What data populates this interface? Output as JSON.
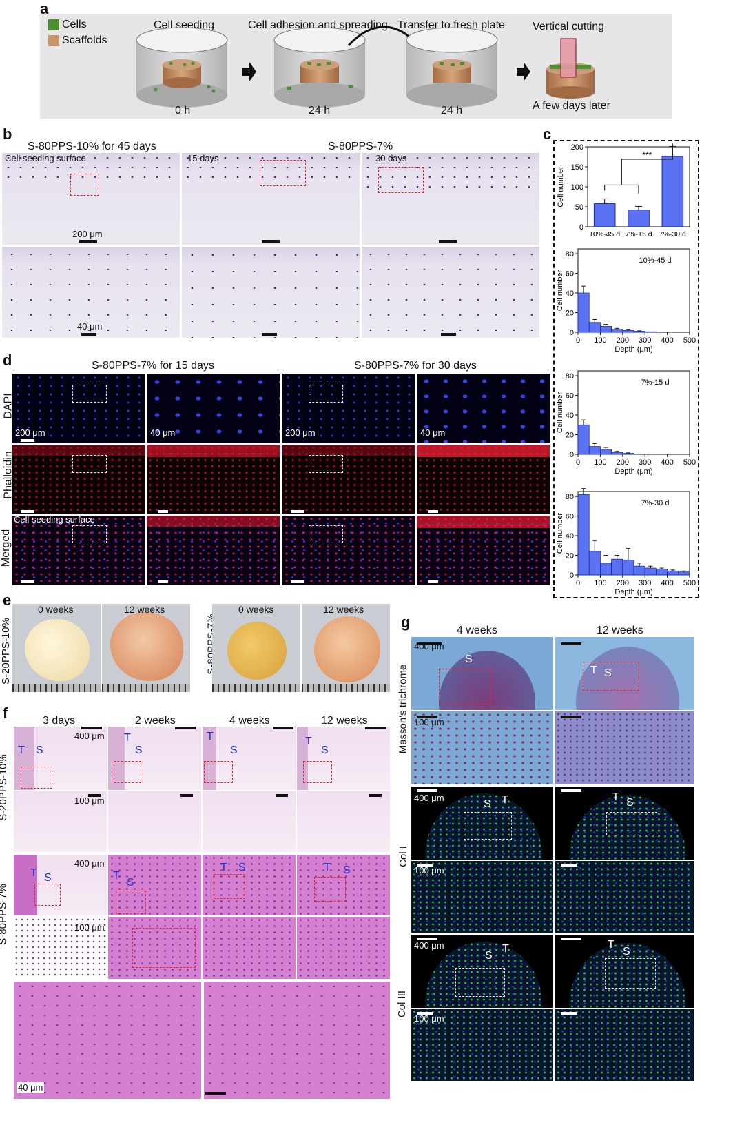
{
  "panel_letters": {
    "a": "a",
    "b": "b",
    "c": "c",
    "d": "d",
    "e": "e",
    "f": "f",
    "g": "g"
  },
  "panel_a": {
    "legend_cells": "Cells",
    "legend_scaffolds": "Scaffolds",
    "cells_color": "#4e8f33",
    "scaffold_color": "#c9956b",
    "step1_title": "Cell seeding",
    "step2_title": "Cell adhesion and spreading",
    "step3_title": "Transfer to fresh plate",
    "step4_title": "Vertical cutting",
    "time1": "0 h",
    "time2": "24 h",
    "time3": "24 h",
    "time4": "A few days later"
  },
  "panel_b": {
    "title_left": "S-80PPS-10% for 45 days",
    "title_right": "S-80PPS-7%",
    "label_15": "15 days",
    "label_30": "30 days",
    "surface_label": "Cell seeding surface",
    "scale_200": "200 μm",
    "scale_40": "40 μm"
  },
  "panel_d": {
    "title_left": "S-80PPS-7% for 15 days",
    "title_right": "S-80PPS-7% for 30 days",
    "row_dapi": "DAPI",
    "row_phalloidin": "Phalloidin",
    "row_merged": "Merged",
    "surface_label": "Cell seeding surface",
    "scale_200": "200 μm",
    "scale_40": "40 μm"
  },
  "panel_e": {
    "row_left": "S-20PPS-10%",
    "row_right": "S-80PPS-7%",
    "w0": "0 weeks",
    "w12": "12 weeks"
  },
  "panel_f": {
    "col1": "3 days",
    "col2": "2 weeks",
    "col3": "4 weeks",
    "col4": "12 weeks",
    "row_top": "S-20PPS-10%",
    "row_bottom": "S-80PPS-7%",
    "scale_400": "400 μm",
    "scale_100": "100 μm",
    "scale_40": "40 μm",
    "T": "T",
    "S": "S"
  },
  "panel_g": {
    "col1": "4 weeks",
    "col2": "12 weeks",
    "row1": "Masson's trichrome",
    "row2": "Col I",
    "row3": "Col III",
    "scale_400": "400 μm",
    "scale_100": "100 μm",
    "T": "T",
    "S": "S"
  },
  "chart_data": [
    {
      "type": "bar",
      "categories": [
        "10%-45 d",
        "7%-15 d",
        "7%-30 d"
      ],
      "values": [
        58,
        42,
        176
      ],
      "errors": [
        12,
        9,
        25
      ],
      "ylabel": "Cell number",
      "ylim": [
        0,
        200
      ],
      "yticks": [
        "0",
        "50",
        "100",
        "150",
        "200"
      ],
      "annotation": "***",
      "bar_color": "#5b73f2"
    },
    {
      "type": "bar",
      "legend": "10%-45 d",
      "x": [
        25,
        75,
        125,
        175,
        225,
        275,
        325,
        375,
        425,
        475
      ],
      "values": [
        40,
        10,
        6,
        3,
        2,
        1,
        0.5,
        0,
        0,
        0
      ],
      "errors": [
        7,
        3,
        2,
        1,
        1,
        0.5,
        0,
        0,
        0,
        0
      ],
      "xlabel": "Depth (μm)",
      "ylabel": "Cell number",
      "xlim": [
        0,
        500
      ],
      "ylim": [
        0,
        85
      ],
      "xticks": [
        "0",
        "100",
        "200",
        "300",
        "400",
        "500"
      ],
      "yticks": [
        "0",
        "20",
        "40",
        "60",
        "80"
      ]
    },
    {
      "type": "bar",
      "legend": "7%-15 d",
      "x": [
        25,
        75,
        125,
        175,
        225,
        275,
        325,
        375,
        425,
        475
      ],
      "values": [
        30,
        8,
        5,
        2,
        1,
        0,
        0,
        0,
        0,
        0
      ],
      "errors": [
        5,
        3,
        2,
        1,
        0.5,
        0,
        0,
        0,
        0,
        0
      ],
      "xlabel": "Depth (μm)",
      "ylabel": "Cell number",
      "xlim": [
        0,
        500
      ],
      "ylim": [
        0,
        85
      ],
      "xticks": [
        "0",
        "100",
        "200",
        "300",
        "400",
        "500"
      ],
      "yticks": [
        "0",
        "20",
        "40",
        "60",
        "80"
      ]
    },
    {
      "type": "bar",
      "legend": "7%-30 d",
      "x": [
        25,
        75,
        125,
        175,
        225,
        275,
        325,
        375,
        425,
        475
      ],
      "values": [
        82,
        24,
        12,
        16,
        15,
        9,
        7,
        6,
        4,
        3
      ],
      "errors": [
        6,
        11,
        8,
        4,
        12,
        3,
        2,
        1,
        1,
        1
      ],
      "xlabel": "Depth (μm)",
      "ylabel": "Cell number",
      "xlim": [
        0,
        500
      ],
      "ylim": [
        0,
        85
      ],
      "xticks": [
        "0",
        "100",
        "200",
        "300",
        "400",
        "500"
      ],
      "yticks": [
        "0",
        "20",
        "40",
        "60",
        "80"
      ]
    }
  ]
}
